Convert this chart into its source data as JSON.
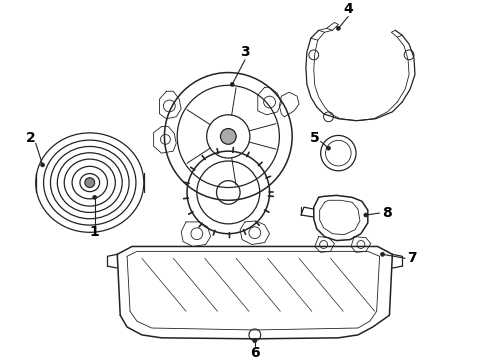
{
  "bg_color": "#ffffff",
  "line_color": "#222222",
  "label_color": "#000000",
  "label_fontsize": 10,
  "label_fontweight": "bold",
  "fig_width": 4.9,
  "fig_height": 3.6,
  "dpi": 100
}
